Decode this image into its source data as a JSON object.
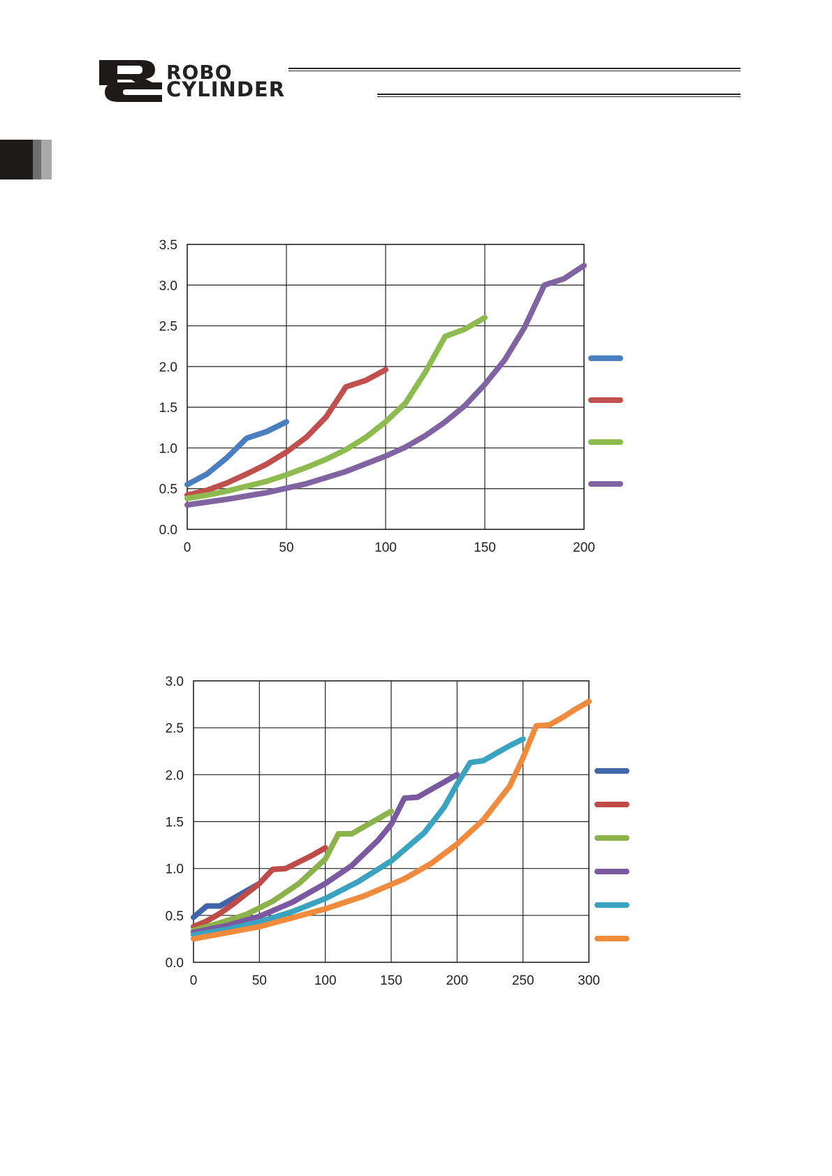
{
  "header": {
    "brand_line1": "ROBO",
    "brand_line2": "CYLINDER"
  },
  "chart_data": [
    {
      "type": "line",
      "xlim": [
        0,
        200
      ],
      "ylim": [
        0,
        3.5
      ],
      "x_ticks": [
        "0",
        "50",
        "100",
        "150",
        "200"
      ],
      "y_ticks": [
        "0.0",
        "0.5",
        "1.0",
        "1.5",
        "2.0",
        "2.5",
        "3.0",
        "3.5"
      ],
      "grid": true,
      "legend_position": "right",
      "series": [
        {
          "color": "#4a7ebf",
          "x": [
            0,
            10,
            20,
            30,
            40,
            50
          ],
          "y": [
            0.55,
            0.68,
            0.88,
            1.12,
            1.2,
            1.32
          ]
        },
        {
          "color": "#c0504d",
          "x": [
            0,
            10,
            20,
            30,
            40,
            50,
            60,
            70,
            80,
            90,
            100
          ],
          "y": [
            0.42,
            0.48,
            0.57,
            0.68,
            0.8,
            0.95,
            1.13,
            1.38,
            1.75,
            1.83,
            1.96
          ]
        },
        {
          "color": "#8dbb4f",
          "x": [
            0,
            10,
            20,
            30,
            40,
            50,
            60,
            70,
            80,
            90,
            100,
            110,
            120,
            130,
            140,
            150
          ],
          "y": [
            0.38,
            0.42,
            0.47,
            0.53,
            0.59,
            0.67,
            0.76,
            0.86,
            0.98,
            1.13,
            1.32,
            1.55,
            1.93,
            2.37,
            2.46,
            2.6
          ]
        },
        {
          "color": "#8064a2",
          "x": [
            0,
            20,
            40,
            60,
            80,
            100,
            110,
            120,
            130,
            140,
            150,
            160,
            170,
            180,
            190,
            200
          ],
          "y": [
            0.3,
            0.37,
            0.45,
            0.56,
            0.71,
            0.9,
            1.01,
            1.15,
            1.32,
            1.52,
            1.78,
            2.08,
            2.48,
            3.0,
            3.08,
            3.24
          ]
        }
      ]
    },
    {
      "type": "line",
      "xlim": [
        0,
        300
      ],
      "ylim": [
        0,
        3.0
      ],
      "x_ticks": [
        "0",
        "50",
        "100",
        "150",
        "200",
        "250",
        "300"
      ],
      "y_ticks": [
        "0.0",
        "0.5",
        "1.0",
        "1.5",
        "2.0",
        "2.5",
        "3.0"
      ],
      "grid": true,
      "legend_position": "right",
      "series": [
        {
          "color": "#4066a8",
          "x": [
            0,
            10,
            20,
            30,
            40,
            50
          ],
          "y": [
            0.48,
            0.6,
            0.6,
            0.68,
            0.76,
            0.84
          ]
        },
        {
          "color": "#be4b48",
          "x": [
            0,
            10,
            20,
            30,
            40,
            50,
            60,
            70,
            80,
            90,
            100
          ],
          "y": [
            0.38,
            0.44,
            0.52,
            0.62,
            0.73,
            0.84,
            0.99,
            1.0,
            1.07,
            1.14,
            1.22
          ]
        },
        {
          "color": "#8cb24c",
          "x": [
            0,
            20,
            40,
            60,
            80,
            100,
            110,
            120,
            130,
            140,
            150
          ],
          "y": [
            0.34,
            0.42,
            0.51,
            0.65,
            0.84,
            1.1,
            1.37,
            1.37,
            1.45,
            1.53,
            1.61
          ]
        },
        {
          "color": "#7a59a0",
          "x": [
            0,
            25,
            50,
            75,
            100,
            120,
            140,
            150,
            160,
            170,
            180,
            190,
            200
          ],
          "y": [
            0.32,
            0.39,
            0.49,
            0.64,
            0.84,
            1.03,
            1.3,
            1.47,
            1.75,
            1.76,
            1.84,
            1.92,
            2.0
          ]
        },
        {
          "color": "#3aa3bf",
          "x": [
            0,
            25,
            50,
            75,
            100,
            125,
            150,
            175,
            190,
            200,
            210,
            220,
            230,
            240,
            250
          ],
          "y": [
            0.29,
            0.35,
            0.43,
            0.54,
            0.68,
            0.86,
            1.08,
            1.38,
            1.65,
            1.9,
            2.13,
            2.15,
            2.23,
            2.31,
            2.38
          ]
        },
        {
          "color": "#f08a3c",
          "x": [
            0,
            50,
            100,
            130,
            160,
            180,
            200,
            220,
            240,
            250,
            260,
            270,
            280,
            290,
            300
          ],
          "y": [
            0.25,
            0.38,
            0.57,
            0.71,
            0.89,
            1.05,
            1.26,
            1.52,
            1.88,
            2.18,
            2.52,
            2.53,
            2.61,
            2.7,
            2.78
          ]
        }
      ]
    }
  ]
}
